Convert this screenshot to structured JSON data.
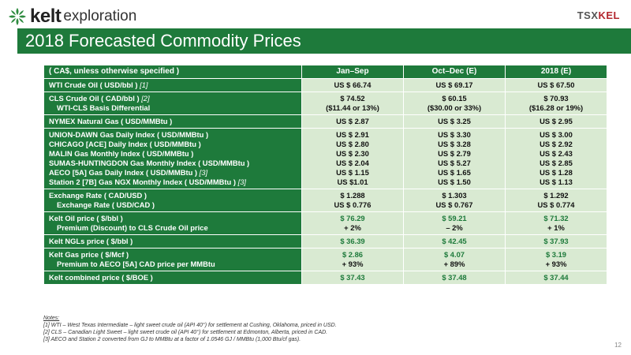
{
  "header": {
    "logo_bold": "kelt",
    "logo_light": "exploration",
    "ticker_left": "TSX",
    "ticker_right": "KEL",
    "title": "2018 Forecasted Commodity Prices"
  },
  "colors": {
    "brand_green": "#1e7a3b",
    "cell_green": "#d9ead2",
    "ticker_red": "#b3262e"
  },
  "table": {
    "columns": [
      "( CA$, unless otherwise specified )",
      "Jan–Sep",
      "Oct–Dec (E)",
      "2018 (E)"
    ],
    "rows": [
      {
        "label": [
          "WTI Crude Oil ( USD/bbl )"
        ],
        "fn": [
          "[1]"
        ],
        "indent": [
          false
        ],
        "cells": [
          [
            "US $ 66.74"
          ],
          [
            "US $ 69.17"
          ],
          [
            "US $ 67.50"
          ]
        ]
      },
      {
        "label": [
          "CLS Crude Oil ( CAD/bbl )",
          "WTI-CLS Basis Differential"
        ],
        "fn": [
          "[2]",
          ""
        ],
        "indent": [
          false,
          true
        ],
        "cells": [
          [
            "$ 74.52",
            "($11.44 or 13%)"
          ],
          [
            "$ 60.15",
            "($30.00 or 33%)"
          ],
          [
            "$ 70.93",
            "($16.28 or 19%)"
          ]
        ]
      },
      {
        "label": [
          "NYMEX Natural Gas ( USD/MMBtu )"
        ],
        "fn": [
          ""
        ],
        "indent": [
          false
        ],
        "cells": [
          [
            "US $ 2.87"
          ],
          [
            "US $ 3.25"
          ],
          [
            "US $ 2.95"
          ]
        ]
      },
      {
        "label": [
          "UNION-DAWN Gas Daily Index ( USD/MMBtu )",
          "CHICAGO [ACE] Daily Index ( USD/MMBtu )",
          "MALIN Gas Monthly Index ( USD/MMBtu )",
          "SUMAS-HUNTINGDON Gas Monthly Index ( USD/MMBtu )",
          "AECO [5A] Gas Daily Index ( USD/MMBtu )",
          "Station 2 [7B] Gas NGX Monthly Index ( USD/MMBtu )"
        ],
        "fn": [
          "",
          "",
          "",
          "",
          "[3]",
          "[3]"
        ],
        "indent": [
          false,
          false,
          false,
          false,
          false,
          false
        ],
        "cells": [
          [
            "US $ 2.91",
            "US $ 2.80",
            "US $ 2.30",
            "US $ 2.04",
            "US $ 1.15",
            "US $1.01"
          ],
          [
            "US $ 3.30",
            "US $ 3.28",
            "US $ 2.79",
            "US $ 5.27",
            "US $ 1.65",
            "US $ 1.50"
          ],
          [
            "US $ 3.00",
            "US $ 2.92",
            "US $ 2.43",
            "US $ 2.85",
            "US $ 1.28",
            "US $ 1.13"
          ]
        ]
      },
      {
        "label": [
          "Exchange Rate ( CAD/USD )",
          "Exchange Rate ( USD/CAD )"
        ],
        "fn": [
          "",
          ""
        ],
        "indent": [
          false,
          true
        ],
        "cells": [
          [
            "$ 1.288",
            "US $ 0.776"
          ],
          [
            "$ 1.303",
            "US $ 0.767"
          ],
          [
            "$ 1.292",
            "US $ 0.774"
          ]
        ]
      },
      {
        "label": [
          "Kelt Oil price ( $/bbl )",
          "Premium (Discount) to CLS Crude Oil price"
        ],
        "fn": [
          "",
          ""
        ],
        "indent": [
          false,
          true
        ],
        "cells": [
          [
            "$ 76.29",
            "+ 2%"
          ],
          [
            "$ 59.21",
            "– 2%"
          ],
          [
            "$ 71.32",
            "+ 1%"
          ]
        ],
        "green_first": true
      },
      {
        "label": [
          "Kelt NGLs price ( $/bbl )"
        ],
        "fn": [
          ""
        ],
        "indent": [
          false
        ],
        "cells": [
          [
            "$ 36.39"
          ],
          [
            "$ 42.45"
          ],
          [
            "$ 37.93"
          ]
        ],
        "green_first": true
      },
      {
        "label": [
          "Kelt Gas price ( $/Mcf )",
          "Premium to AECO [5A] CAD price per MMBtu"
        ],
        "fn": [
          "",
          ""
        ],
        "indent": [
          false,
          true
        ],
        "cells": [
          [
            "$ 2.86",
            "+ 93%"
          ],
          [
            "$ 4.07",
            "+ 89%"
          ],
          [
            "$ 3.19",
            "+ 93%"
          ]
        ],
        "green_first": true
      },
      {
        "label": [
          "Kelt combined price ( $/BOE )"
        ],
        "fn": [
          ""
        ],
        "indent": [
          false
        ],
        "cells": [
          [
            "$ 37.43"
          ],
          [
            "$ 37.48"
          ],
          [
            "$ 37.44"
          ]
        ],
        "green_first": true
      }
    ]
  },
  "notes": {
    "heading": "Notes:",
    "items": [
      "[1] WTI – West Texas Intermediate – light sweet crude oil (API 40°) for settlement at Cushing, Oklahoma, priced in USD.",
      "[2] CLS – Canadian Light Sweet – light sweet crude oil (API 40°) for settlement at Edmonton, Alberta, priced in CAD.",
      "[3] AECO  and Station 2 converted from GJ to MMBtu at a factor of  1.0546 GJ / MMBtu (1,000 Btu/cf gas)."
    ]
  },
  "page_number": "12"
}
